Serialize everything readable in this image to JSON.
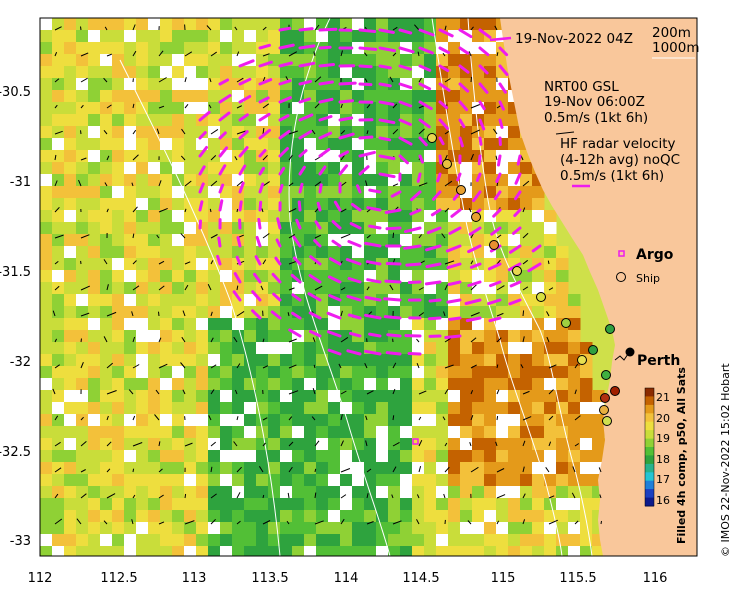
{
  "date_title": "19-Nov-2022 04Z",
  "contours": [
    "200m",
    "1000m"
  ],
  "model": {
    "name": "NRT00 GSL",
    "time": "19-Nov 06:00Z",
    "scale": "0.5m/s (1kt 6h)"
  },
  "radar": {
    "line1": "HF radar velocity",
    "line2": "(4-12h avg) noQC",
    "scale": "0.5m/s (1kt 6h)"
  },
  "legend": {
    "argo": "Argo",
    "ship": "Ship"
  },
  "city": "Perth",
  "colorbar": {
    "label": "Filled 4h comp, p50, All Sats",
    "ticks": [
      "21",
      "20",
      "19",
      "18",
      "17",
      "16"
    ],
    "colors": [
      "#8b2a00",
      "#c46200",
      "#e49a1a",
      "#f3c13a",
      "#eede3e",
      "#c9dd3a",
      "#8fd135",
      "#52bf36",
      "#2ea33e",
      "#27b28d",
      "#25c4d3",
      "#1f7fd9",
      "#1b3fc0",
      "#0d1a8c"
    ]
  },
  "copyright": "© IMOS 22-Nov-2022 15:02 Hobart",
  "axes": {
    "x_ticks": [
      "112",
      "112.5",
      "113",
      "113.5",
      "114",
      "114.5",
      "115",
      "115.5",
      "116"
    ],
    "y_ticks": [
      "-30.5",
      "-31",
      "-31.5",
      "-32",
      "-32.5",
      "-33"
    ]
  },
  "colors": {
    "land": "#f9c79b",
    "vector_hf": "#ee1cee",
    "vector_model": "#000000",
    "contour": "#ffffff"
  }
}
